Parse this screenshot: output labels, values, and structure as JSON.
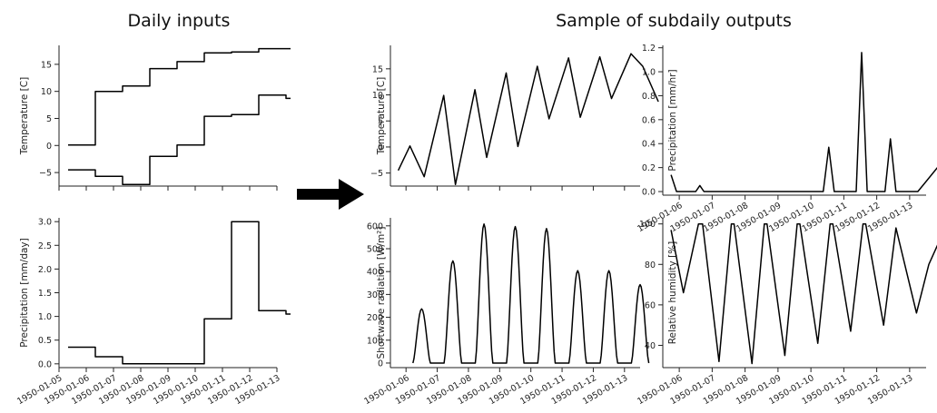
{
  "headings": {
    "left": "Daily inputs",
    "right": "Sample of subdaily outputs"
  },
  "chart_data": [
    {
      "id": "daily-temperature",
      "type": "line",
      "title": "",
      "xlabel": "",
      "ylabel": "Temperature [C]",
      "xlim": [
        "1950-01-05",
        "1950-01-13"
      ],
      "ylim": [
        -7.5,
        18.5
      ],
      "yticks": [
        -5,
        0,
        5,
        10,
        15
      ],
      "yticklabels": [
        "−5",
        "0",
        "5",
        "10",
        "15"
      ],
      "xticks": [],
      "grid": false,
      "series": [
        {
          "step": true,
          "x": [
            "1950-01-05",
            "1950-01-06",
            "1950-01-07",
            "1950-01-08",
            "1950-01-09",
            "1950-01-10",
            "1950-01-11",
            "1950-01-12",
            "1950-01-13"
          ],
          "y": [
            0.1,
            10.0,
            11.0,
            14.2,
            15.5,
            17.1,
            17.3,
            17.9,
            17.9
          ]
        },
        {
          "step": true,
          "x": [
            "1950-01-05",
            "1950-01-06",
            "1950-01-07",
            "1950-01-08",
            "1950-01-09",
            "1950-01-10",
            "1950-01-11",
            "1950-01-12",
            "1950-01-13"
          ],
          "y": [
            -4.5,
            -5.7,
            -7.2,
            -2.0,
            0.1,
            5.4,
            5.7,
            9.3,
            8.7
          ]
        }
      ]
    },
    {
      "id": "daily-precipitation",
      "type": "line",
      "title": "",
      "xlabel": "",
      "ylabel": "Precipitation [mm/day]",
      "xlim": [
        "1950-01-05",
        "1950-01-13"
      ],
      "ylim": [
        -0.08,
        3.08
      ],
      "yticks": [
        0,
        0.5,
        1,
        1.5,
        2,
        2.5,
        3
      ],
      "yticklabels": [
        "0.0",
        "0.5",
        "1.0",
        "1.5",
        "2.0",
        "2.5",
        "3.0"
      ],
      "xticks": [
        "1950-01-05",
        "1950-01-06",
        "1950-01-07",
        "1950-01-08",
        "1950-01-09",
        "1950-01-10",
        "1950-01-11",
        "1950-01-12",
        "1950-01-13"
      ],
      "grid": false,
      "series": [
        {
          "step": true,
          "x": [
            "1950-01-05",
            "1950-01-06",
            "1950-01-07",
            "1950-01-08",
            "1950-01-09",
            "1950-01-10",
            "1950-01-11",
            "1950-01-12",
            "1950-01-13"
          ],
          "y": [
            0.35,
            0.15,
            0.0,
            0.0,
            0.0,
            0.95,
            3.0,
            1.12,
            1.05
          ]
        }
      ]
    },
    {
      "id": "subdaily-temperature",
      "type": "line",
      "title": "",
      "xlabel": "",
      "ylabel": "Temperature [C]",
      "xlim": [
        "1950-01-05 12:00",
        "1950-01-13 12:00"
      ],
      "ylim": [
        -7.5,
        19.5
      ],
      "yticks": [
        -5,
        0,
        5,
        10,
        15
      ],
      "yticklabels": [
        "−5",
        "0",
        "5",
        "10",
        "15"
      ],
      "xticks": [],
      "grid": false,
      "series": [
        {
          "x": [
            "1950-01-05 18:00",
            "1950-01-06 03:00",
            "1950-01-06 14:00",
            "1950-01-07 05:00",
            "1950-01-07 14:00",
            "1950-01-08 05:00",
            "1950-01-08 14:00",
            "1950-01-09 05:00",
            "1950-01-09 14:00",
            "1950-01-10 05:00",
            "1950-01-10 14:00",
            "1950-01-11 05:00",
            "1950-01-11 14:00",
            "1950-01-12 05:00",
            "1950-01-12 14:00",
            "1950-01-13 05:00",
            "1950-01-13 14:00",
            "1950-01-14 02:00"
          ],
          "y": [
            -4.5,
            0.2,
            -5.7,
            9.9,
            -7.2,
            11.0,
            -2.0,
            14.2,
            0.1,
            15.5,
            5.4,
            17.1,
            5.7,
            17.3,
            9.3,
            17.9,
            15.5,
            8.7
          ]
        }
      ]
    },
    {
      "id": "subdaily-precipitation",
      "type": "line",
      "title": "",
      "xlabel": "",
      "ylabel": "Precipitation [mm/hr]",
      "xlim": [
        "1950-01-05 12:00",
        "1950-01-13 12:00"
      ],
      "ylim": [
        -0.03,
        1.22
      ],
      "yticks": [
        0,
        0.2,
        0.4,
        0.6,
        0.8,
        1.0,
        1.2
      ],
      "yticklabels": [
        "0.0",
        "0.2",
        "0.4",
        "0.6",
        "0.8",
        "1.0",
        "1.2"
      ],
      "xticks": [
        "1950-01-06",
        "1950-01-07",
        "1950-01-08",
        "1950-01-09",
        "1950-01-10",
        "1950-01-11",
        "1950-01-12",
        "1950-01-13"
      ],
      "grid": false,
      "series": [
        {
          "x": [
            "1950-01-05 18:00",
            "1950-01-05 22:00",
            "1950-01-06 12:00",
            "1950-01-06 15:00",
            "1950-01-06 18:00",
            "1950-01-10 09:00",
            "1950-01-10 13:00",
            "1950-01-10 17:00",
            "1950-01-11 09:00",
            "1950-01-11 13:00",
            "1950-01-11 17:00",
            "1950-01-12 06:00",
            "1950-01-12 10:00",
            "1950-01-12 14:00",
            "1950-01-13 02:00",
            "1950-01-13 06:00",
            "1950-01-14 02:00"
          ],
          "y": [
            0.14,
            0.0,
            0.0,
            0.05,
            0.0,
            0.0,
            0.37,
            0.0,
            0.0,
            1.16,
            0.0,
            0.0,
            0.44,
            0.0,
            0.0,
            0.0,
            0.28
          ]
        }
      ]
    },
    {
      "id": "subdaily-shortwave",
      "type": "line",
      "title": "",
      "xlabel": "",
      "ylabel": "Shortwave radiation [W/m²]",
      "xlim": [
        "1950-01-05 12:00",
        "1950-01-13 12:00"
      ],
      "ylim": [
        -20,
        635
      ],
      "yticks": [
        0,
        100,
        200,
        300,
        400,
        500,
        600
      ],
      "yticklabels": [
        "0",
        "100",
        "200",
        "300",
        "400",
        "500",
        "600"
      ],
      "xticks": [
        "1950-01-06",
        "1950-01-07",
        "1950-01-08",
        "1950-01-09",
        "1950-01-10",
        "1950-01-11",
        "1950-01-12",
        "1950-01-13"
      ],
      "grid": false,
      "daily_peaks": [
        {
          "day": "1950-01-06",
          "peak": 237
        },
        {
          "day": "1950-01-07",
          "peak": 447
        },
        {
          "day": "1950-01-08",
          "peak": 608
        },
        {
          "day": "1950-01-09",
          "peak": 597
        },
        {
          "day": "1950-01-10",
          "peak": 588
        },
        {
          "day": "1950-01-11",
          "peak": 404
        },
        {
          "day": "1950-01-12",
          "peak": 404
        },
        {
          "day": "1950-01-13",
          "peak": 343
        }
      ]
    },
    {
      "id": "subdaily-humidity",
      "type": "line",
      "title": "",
      "xlabel": "",
      "ylabel": "Relative humidity [%]",
      "xlim": [
        "1950-01-05 12:00",
        "1950-01-13 12:00"
      ],
      "ylim": [
        29,
        103
      ],
      "yticks": [
        40,
        60,
        80,
        100
      ],
      "yticklabels": [
        "40",
        "60",
        "80",
        "100"
      ],
      "xticks": [
        "1950-01-06",
        "1950-01-07",
        "1950-01-08",
        "1950-01-09",
        "1950-01-10",
        "1950-01-11",
        "1950-01-12",
        "1950-01-13"
      ],
      "grid": false,
      "series": [
        {
          "x": [
            "1950-01-05 18:00",
            "1950-01-06 03:00",
            "1950-01-06 14:00",
            "1950-01-06 17:00",
            "1950-01-07 05:00",
            "1950-01-07 14:00",
            "1950-01-07 16:00",
            "1950-01-08 05:00",
            "1950-01-08 14:00",
            "1950-01-08 16:00",
            "1950-01-09 05:00",
            "1950-01-09 14:00",
            "1950-01-09 16:00",
            "1950-01-10 05:00",
            "1950-01-10 14:00",
            "1950-01-10 16:00",
            "1950-01-11 05:00",
            "1950-01-11 14:00",
            "1950-01-11 16:00",
            "1950-01-12 05:00",
            "1950-01-12 14:00",
            "1950-01-13 05:00",
            "1950-01-13 14:00",
            "1950-01-14 02:00"
          ],
          "y": [
            97,
            66,
            100,
            100,
            32,
            100,
            100,
            31,
            100,
            100,
            35,
            100,
            100,
            41,
            100,
            100,
            47,
            100,
            100,
            50,
            98,
            56,
            80,
            98
          ]
        }
      ]
    }
  ]
}
